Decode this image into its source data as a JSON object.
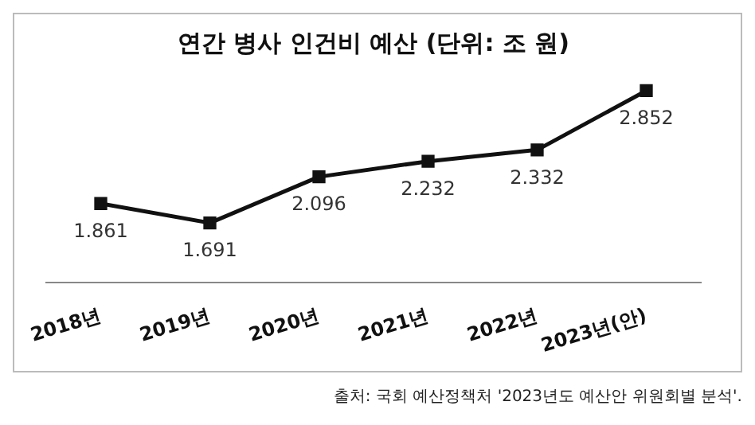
{
  "chart_data": {
    "type": "line",
    "title": "연간 병사 인건비 예산 (단위: 조 원)",
    "categories": [
      "2018년",
      "2019년",
      "2020년",
      "2021년",
      "2022년",
      "2023년(안)"
    ],
    "series": [
      {
        "color": "#111111",
        "values": [
          1.861,
          1.691,
          2.096,
          2.232,
          2.332,
          2.852
        ]
      }
    ],
    "data_labels": true,
    "marker": "square",
    "line_style": "solid",
    "grid": false,
    "legend": false,
    "annotations": [
      "출처: 국회 예산정책처 '2023년도 예산안 위원회별 분석'."
    ]
  }
}
